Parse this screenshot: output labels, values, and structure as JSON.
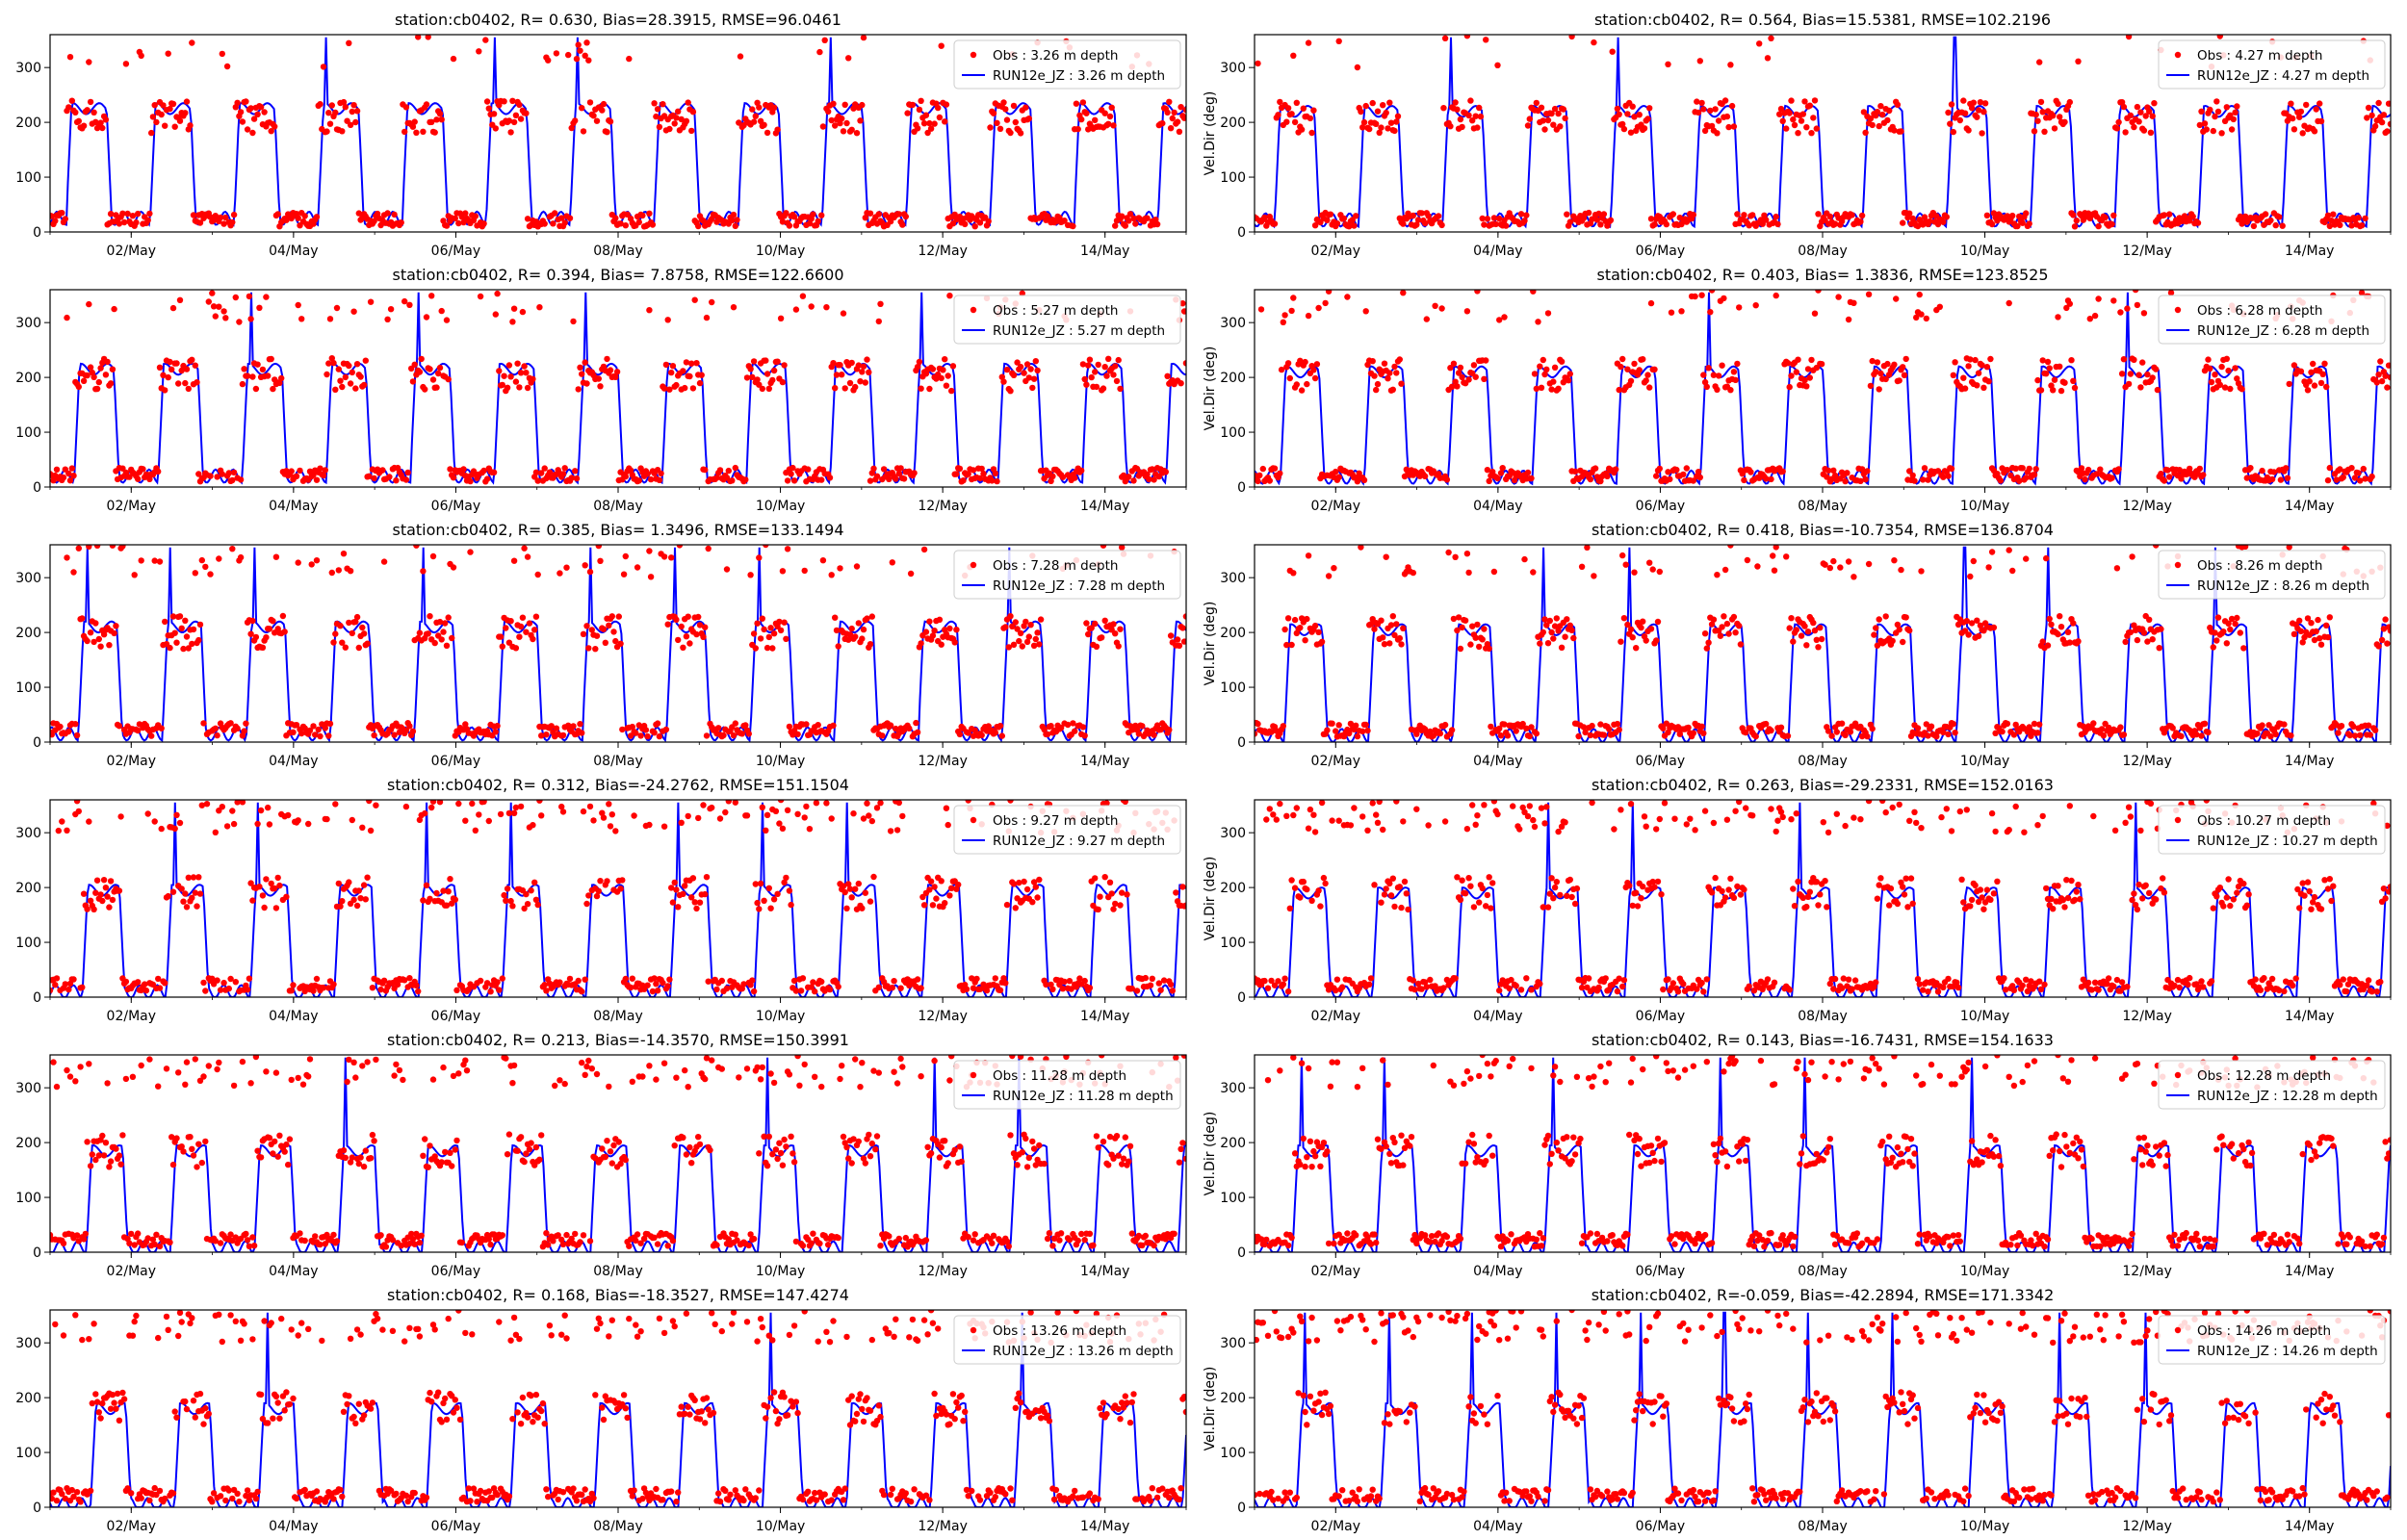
{
  "figure": {
    "colors": {
      "obs": "#ff0000",
      "model": "#0000ff",
      "axes": "#000000",
      "legend_border": "#cccccc"
    }
  },
  "chart_data": [
    {
      "type": "scatter+line",
      "title": "station:cb0402, R= 0.630, Bias=28.3915, RMSE=96.0461",
      "xlabel": "",
      "ylabel": "",
      "x_tick_labels": [
        "02/May",
        "04/May",
        "06/May",
        "08/May",
        "10/May",
        "12/May",
        "14/May"
      ],
      "xlim": [
        "2016-05-01",
        "2016-05-15"
      ],
      "ylim": [
        0,
        360
      ],
      "y_ticks": [
        0,
        100,
        200,
        300
      ],
      "legend_position": "upper right",
      "series": [
        {
          "name": "Obs : 3.26 m depth",
          "kind": "points",
          "color": "#ff0000",
          "pattern": {
            "period_days": 1.035,
            "phase_days": 0.2,
            "high_level": 210,
            "high_fraction": 0.48,
            "spread": "low"
          }
        },
        {
          "name": "RUN12e_JZ : 3.26 m depth",
          "kind": "line",
          "color": "#0000ff",
          "pattern": {
            "period_days": 1.035,
            "phase_days": 0.2,
            "high_level": 225,
            "high_fraction": 0.48,
            "low_level": 25
          }
        }
      ]
    },
    {
      "type": "scatter+line",
      "title": "station:cb0402, R= 0.564, Bias=15.5381, RMSE=102.2196",
      "xlabel": "",
      "ylabel": "Vel.Dir (deg)",
      "x_tick_labels": [
        "02/May",
        "04/May",
        "06/May",
        "08/May",
        "10/May",
        "12/May",
        "14/May"
      ],
      "xlim": [
        "2016-05-01",
        "2016-05-15"
      ],
      "ylim": [
        0,
        360
      ],
      "y_ticks": [
        0,
        100,
        200,
        300
      ],
      "legend_position": "upper right",
      "series": [
        {
          "name": "Obs : 4.27 m depth",
          "kind": "points",
          "color": "#ff0000",
          "pattern": {
            "period_days": 1.035,
            "phase_days": 0.25,
            "high_level": 210,
            "high_fraction": 0.47,
            "spread": "low"
          }
        },
        {
          "name": "RUN12e_JZ : 4.27 m depth",
          "kind": "line",
          "color": "#0000ff",
          "pattern": {
            "period_days": 1.035,
            "phase_days": 0.25,
            "high_level": 220,
            "high_fraction": 0.47,
            "low_level": 22
          }
        }
      ]
    },
    {
      "type": "scatter+line",
      "title": "station:cb0402, R= 0.394, Bias= 7.8758, RMSE=122.6600",
      "xlabel": "",
      "ylabel": "",
      "x_tick_labels": [
        "02/May",
        "04/May",
        "06/May",
        "08/May",
        "10/May",
        "12/May",
        "14/May"
      ],
      "xlim": [
        "2016-05-01",
        "2016-05-15"
      ],
      "ylim": [
        0,
        360
      ],
      "y_ticks": [
        0,
        100,
        200,
        300
      ],
      "legend_position": "upper right",
      "series": [
        {
          "name": "Obs : 5.27 m depth",
          "kind": "points",
          "color": "#ff0000",
          "pattern": {
            "period_days": 1.035,
            "phase_days": 0.3,
            "high_level": 205,
            "high_fraction": 0.47,
            "spread": "medium"
          }
        },
        {
          "name": "RUN12e_JZ : 5.27 m depth",
          "kind": "line",
          "color": "#0000ff",
          "pattern": {
            "period_days": 1.035,
            "phase_days": 0.3,
            "high_level": 215,
            "high_fraction": 0.47,
            "low_level": 20
          }
        }
      ]
    },
    {
      "type": "scatter+line",
      "title": "station:cb0402, R= 0.403, Bias= 1.3836, RMSE=123.8525",
      "xlabel": "",
      "ylabel": "Vel.Dir (deg)",
      "x_tick_labels": [
        "02/May",
        "04/May",
        "06/May",
        "08/May",
        "10/May",
        "12/May",
        "14/May"
      ],
      "xlim": [
        "2016-05-01",
        "2016-05-15"
      ],
      "ylim": [
        0,
        360
      ],
      "y_ticks": [
        0,
        100,
        200,
        300
      ],
      "legend_position": "upper right",
      "series": [
        {
          "name": "Obs : 6.28 m depth",
          "kind": "points",
          "color": "#ff0000",
          "pattern": {
            "period_days": 1.035,
            "phase_days": 0.32,
            "high_level": 205,
            "high_fraction": 0.46,
            "spread": "medium"
          }
        },
        {
          "name": "RUN12e_JZ : 6.28 m depth",
          "kind": "line",
          "color": "#0000ff",
          "pattern": {
            "period_days": 1.035,
            "phase_days": 0.32,
            "high_level": 210,
            "high_fraction": 0.46,
            "low_level": 18
          }
        }
      ]
    },
    {
      "type": "scatter+line",
      "title": "station:cb0402, R= 0.385, Bias= 1.3496, RMSE=133.1494",
      "xlabel": "",
      "ylabel": "",
      "x_tick_labels": [
        "02/May",
        "04/May",
        "06/May",
        "08/May",
        "10/May",
        "12/May",
        "14/May"
      ],
      "xlim": [
        "2016-05-01",
        "2016-05-15"
      ],
      "ylim": [
        0,
        360
      ],
      "y_ticks": [
        0,
        100,
        200,
        300
      ],
      "legend_position": "upper right",
      "series": [
        {
          "name": "Obs : 7.28 m depth",
          "kind": "points",
          "color": "#ff0000",
          "pattern": {
            "period_days": 1.035,
            "phase_days": 0.35,
            "high_level": 200,
            "high_fraction": 0.46,
            "spread": "medium"
          }
        },
        {
          "name": "RUN12e_JZ : 7.28 m depth",
          "kind": "line",
          "color": "#0000ff",
          "pattern": {
            "period_days": 1.035,
            "phase_days": 0.35,
            "high_level": 210,
            "high_fraction": 0.46,
            "low_level": 15
          }
        }
      ]
    },
    {
      "type": "scatter+line",
      "title": "station:cb0402, R= 0.418, Bias=-10.7354, RMSE=136.8704",
      "xlabel": "",
      "ylabel": "Vel.Dir (deg)",
      "x_tick_labels": [
        "02/May",
        "04/May",
        "06/May",
        "08/May",
        "10/May",
        "12/May",
        "14/May"
      ],
      "xlim": [
        "2016-05-01",
        "2016-05-15"
      ],
      "ylim": [
        0,
        360
      ],
      "y_ticks": [
        0,
        100,
        200,
        300
      ],
      "legend_position": "upper right",
      "series": [
        {
          "name": "Obs : 8.26 m depth",
          "kind": "points",
          "color": "#ff0000",
          "pattern": {
            "period_days": 1.035,
            "phase_days": 0.37,
            "high_level": 200,
            "high_fraction": 0.45,
            "spread": "medium"
          }
        },
        {
          "name": "RUN12e_JZ : 8.26 m depth",
          "kind": "line",
          "color": "#0000ff",
          "pattern": {
            "period_days": 1.035,
            "phase_days": 0.37,
            "high_level": 205,
            "high_fraction": 0.45,
            "low_level": 12
          }
        }
      ]
    },
    {
      "type": "scatter+line",
      "title": "station:cb0402, R= 0.312, Bias=-24.2762, RMSE=151.1504",
      "xlabel": "",
      "ylabel": "",
      "x_tick_labels": [
        "02/May",
        "04/May",
        "06/May",
        "08/May",
        "10/May",
        "12/May",
        "14/May"
      ],
      "xlim": [
        "2016-05-01",
        "2016-05-15"
      ],
      "ylim": [
        0,
        360
      ],
      "y_ticks": [
        0,
        100,
        200,
        300
      ],
      "legend_position": "upper right",
      "series": [
        {
          "name": "Obs : 9.27 m depth",
          "kind": "points",
          "color": "#ff0000",
          "pattern": {
            "period_days": 1.035,
            "phase_days": 0.4,
            "high_level": 190,
            "high_fraction": 0.44,
            "spread": "high"
          }
        },
        {
          "name": "RUN12e_JZ : 9.27 m depth",
          "kind": "line",
          "color": "#0000ff",
          "pattern": {
            "period_days": 1.035,
            "phase_days": 0.4,
            "high_level": 195,
            "high_fraction": 0.44,
            "low_level": 10
          }
        }
      ]
    },
    {
      "type": "scatter+line",
      "title": "station:cb0402, R= 0.263, Bias=-29.2331, RMSE=152.0163",
      "xlabel": "",
      "ylabel": "Vel.Dir (deg)",
      "x_tick_labels": [
        "02/May",
        "04/May",
        "06/May",
        "08/May",
        "10/May",
        "12/May",
        "14/May"
      ],
      "xlim": [
        "2016-05-01",
        "2016-05-15"
      ],
      "ylim": [
        0,
        360
      ],
      "y_ticks": [
        0,
        100,
        200,
        300
      ],
      "legend_position": "upper right",
      "series": [
        {
          "name": "Obs : 10.27 m depth",
          "kind": "points",
          "color": "#ff0000",
          "pattern": {
            "period_days": 1.035,
            "phase_days": 0.42,
            "high_level": 190,
            "high_fraction": 0.44,
            "spread": "high"
          }
        },
        {
          "name": "RUN12e_JZ : 10.27 m depth",
          "kind": "line",
          "color": "#0000ff",
          "pattern": {
            "period_days": 1.035,
            "phase_days": 0.42,
            "high_level": 190,
            "high_fraction": 0.44,
            "low_level": 8
          }
        }
      ]
    },
    {
      "type": "scatter+line",
      "title": "station:cb0402, R= 0.213, Bias=-14.3570, RMSE=150.3991",
      "xlabel": "",
      "ylabel": "",
      "x_tick_labels": [
        "02/May",
        "04/May",
        "06/May",
        "08/May",
        "10/May",
        "12/May",
        "14/May"
      ],
      "xlim": [
        "2016-05-01",
        "2016-05-15"
      ],
      "ylim": [
        0,
        360
      ],
      "y_ticks": [
        0,
        100,
        200,
        300
      ],
      "legend_position": "upper right",
      "series": [
        {
          "name": "Obs : 11.28 m depth",
          "kind": "points",
          "color": "#ff0000",
          "pattern": {
            "period_days": 1.035,
            "phase_days": 0.45,
            "high_level": 185,
            "high_fraction": 0.43,
            "spread": "high"
          }
        },
        {
          "name": "RUN12e_JZ : 11.28 m depth",
          "kind": "line",
          "color": "#0000ff",
          "pattern": {
            "period_days": 1.035,
            "phase_days": 0.45,
            "high_level": 185,
            "high_fraction": 0.43,
            "low_level": 8
          }
        }
      ]
    },
    {
      "type": "scatter+line",
      "title": "station:cb0402, R= 0.143, Bias=-16.7431, RMSE=154.1633",
      "xlabel": "",
      "ylabel": "Vel.Dir (deg)",
      "x_tick_labels": [
        "02/May",
        "04/May",
        "06/May",
        "08/May",
        "10/May",
        "12/May",
        "14/May"
      ],
      "xlim": [
        "2016-05-01",
        "2016-05-15"
      ],
      "ylim": [
        0,
        360
      ],
      "y_ticks": [
        0,
        100,
        200,
        300
      ],
      "legend_position": "upper right",
      "series": [
        {
          "name": "Obs : 12.28 m depth",
          "kind": "points",
          "color": "#ff0000",
          "pattern": {
            "period_days": 1.035,
            "phase_days": 0.47,
            "high_level": 185,
            "high_fraction": 0.43,
            "spread": "high"
          }
        },
        {
          "name": "RUN12e_JZ : 12.28 m depth",
          "kind": "line",
          "color": "#0000ff",
          "pattern": {
            "period_days": 1.035,
            "phase_days": 0.47,
            "high_level": 185,
            "high_fraction": 0.43,
            "low_level": 6
          }
        }
      ]
    },
    {
      "type": "scatter+line",
      "title": "station:cb0402, R= 0.168, Bias=-18.3527, RMSE=147.4274",
      "xlabel": "",
      "ylabel": "",
      "x_tick_labels": [
        "02/May",
        "04/May",
        "06/May",
        "08/May",
        "10/May",
        "12/May",
        "14/May"
      ],
      "xlim": [
        "2016-05-01",
        "2016-05-15"
      ],
      "ylim": [
        0,
        360
      ],
      "y_ticks": [
        0,
        100,
        200,
        300
      ],
      "legend_position": "upper right",
      "series": [
        {
          "name": "Obs : 13.26 m depth",
          "kind": "points",
          "color": "#ff0000",
          "pattern": {
            "period_days": 1.035,
            "phase_days": 0.5,
            "high_level": 180,
            "high_fraction": 0.42,
            "spread": "high"
          }
        },
        {
          "name": "RUN12e_JZ : 13.26 m depth",
          "kind": "line",
          "color": "#0000ff",
          "pattern": {
            "period_days": 1.035,
            "phase_days": 0.5,
            "high_level": 180,
            "high_fraction": 0.42,
            "low_level": 5
          }
        }
      ]
    },
    {
      "type": "scatter+line",
      "title": "station:cb0402, R=-0.059, Bias=-42.2894, RMSE=171.3342",
      "xlabel": "",
      "ylabel": "Vel.Dir (deg)",
      "x_tick_labels": [
        "02/May",
        "04/May",
        "06/May",
        "08/May",
        "10/May",
        "12/May",
        "14/May"
      ],
      "xlim": [
        "2016-05-01",
        "2016-05-15"
      ],
      "ylim": [
        0,
        360
      ],
      "y_ticks": [
        0,
        100,
        200,
        300
      ],
      "legend_position": "upper right",
      "series": [
        {
          "name": "Obs : 14.26 m depth",
          "kind": "points",
          "color": "#ff0000",
          "pattern": {
            "period_days": 1.035,
            "phase_days": 0.52,
            "high_level": 180,
            "high_fraction": 0.42,
            "spread": "very_high"
          }
        },
        {
          "name": "RUN12e_JZ : 14.26 m depth",
          "kind": "line",
          "color": "#0000ff",
          "pattern": {
            "period_days": 1.035,
            "phase_days": 0.52,
            "high_level": 180,
            "high_fraction": 0.42,
            "low_level": 5
          }
        }
      ]
    }
  ]
}
